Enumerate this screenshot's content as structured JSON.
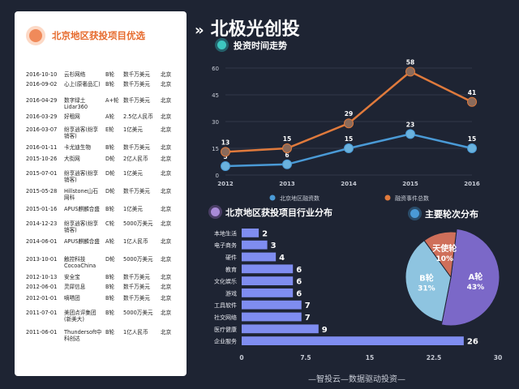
{
  "left_panel": {
    "title": "北京地区获投项目优选",
    "rows": [
      {
        "date": "2016-10-10",
        "name": "云杉网络",
        "round": "B轮",
        "amount": "数千万美元",
        "city": "北京"
      },
      {
        "date": "2016-09-02",
        "name": "心上(原奢品汇)",
        "round": "B轮",
        "amount": "数千万美元",
        "city": "北京"
      },
      {
        "date": "2016-04-29",
        "name": "数字绿土Lidar360",
        "round": "A+轮",
        "amount": "数千万美元",
        "city": "北京"
      },
      {
        "date": "2016-03-29",
        "name": "好租网",
        "round": "A轮",
        "amount": "2.5亿人民币",
        "city": "北京"
      },
      {
        "date": "2016-03-07",
        "name": "纷享逍客(纷享销客)",
        "round": "E轮",
        "amount": "1亿美元",
        "city": "北京"
      },
      {
        "date": "2016-01-11",
        "name": "卡尤迪生物",
        "round": "B轮",
        "amount": "数千万美元",
        "city": "北京"
      },
      {
        "date": "2015-10-26",
        "name": "大街网",
        "round": "D轮",
        "amount": "2亿人民币",
        "city": "北京"
      },
      {
        "date": "2015-07-01",
        "name": "纷享逍客(纷享销客)",
        "round": "D轮",
        "amount": "1亿美元",
        "city": "北京"
      },
      {
        "date": "2015-05-28",
        "name": "Hillstone山石网科",
        "round": "D轮",
        "amount": "数千万美元",
        "city": "北京"
      },
      {
        "date": "2015-01-16",
        "name": "APUS麒麟合盛",
        "round": "B轮",
        "amount": "1亿美元",
        "city": "北京"
      },
      {
        "date": "2014-12-23",
        "name": "纷享逍客(纷享销客)",
        "round": "C轮",
        "amount": "5000万美元",
        "city": "北京"
      },
      {
        "date": "2014-06-01",
        "name": "APUS麒麟合盛",
        "round": "A轮",
        "amount": "1亿人民币",
        "city": "北京"
      },
      {
        "date": "2013-10-01",
        "name": "触控科技CocoaChina",
        "round": "D轮",
        "amount": "5000万美元",
        "city": "北京"
      },
      {
        "date": "2012-10-13",
        "name": "安全宝",
        "round": "B轮",
        "amount": "数千万美元",
        "city": "北京"
      },
      {
        "date": "2012-06-01",
        "name": "灵犀信息",
        "round": "B轮",
        "amount": "数千万美元",
        "city": "北京"
      },
      {
        "date": "2012-01-01",
        "name": "嘀嗒团",
        "round": "B轮",
        "amount": "数千万美元",
        "city": "北京"
      },
      {
        "date": "2011-07-01",
        "name": "美团点评集团(新美大)",
        "round": "B轮",
        "amount": "5000万美元",
        "city": "北京"
      },
      {
        "date": "2011-06-01",
        "name": "Thundersoft中科创达",
        "round": "B轮",
        "amount": "1亿人民币",
        "city": "北京"
      }
    ]
  },
  "main_title": "北极光创投",
  "main_title_arrow": "»",
  "footer": "—智投云—数据驱动投资—",
  "colors": {
    "bg": "#1e2433",
    "accent_orange": "#e07a3c",
    "accent_blue": "#4a9ad6",
    "bar": "#7f8df0",
    "pie_a": "#7b68c8",
    "pie_b": "#8ec4e0",
    "pie_angel": "#cf6f5a"
  },
  "chart_data": [
    {
      "type": "line",
      "title": "投资时间走势",
      "x": [
        "2012",
        "2013",
        "2014",
        "2015",
        "2016"
      ],
      "ylim": [
        0,
        60
      ],
      "yticks": [
        "0",
        "15",
        "30",
        "45",
        "60"
      ],
      "series": [
        {
          "name": "北京地区融资数",
          "values": [
            5,
            6,
            15,
            23,
            15
          ],
          "color": "#4a9ad6"
        },
        {
          "name": "融资事件总数",
          "values": [
            13,
            15,
            29,
            58,
            41
          ],
          "color": "#e07a3c"
        }
      ],
      "legend_position": "bottom",
      "grid": true
    },
    {
      "type": "bar",
      "title": "北京地区获投项目行业分布",
      "categories": [
        "本地生活",
        "电子商务",
        "硬件",
        "教育",
        "文化娱乐",
        "游戏",
        "工具软件",
        "社交网络",
        "医疗健康",
        "企业服务"
      ],
      "values": [
        2,
        3,
        4,
        6,
        6,
        6,
        7,
        7,
        9,
        26
      ],
      "xlim": [
        0,
        30
      ],
      "xticks": [
        "0",
        "7.5",
        "15",
        "22.5",
        "30"
      ],
      "orientation": "horizontal"
    },
    {
      "type": "pie",
      "title": "主要轮次分布",
      "labels": [
        "A轮",
        "B轮",
        "天使轮"
      ],
      "values": [
        43,
        31,
        10
      ],
      "value_labels": [
        "43%",
        "31%",
        "10%"
      ]
    }
  ]
}
